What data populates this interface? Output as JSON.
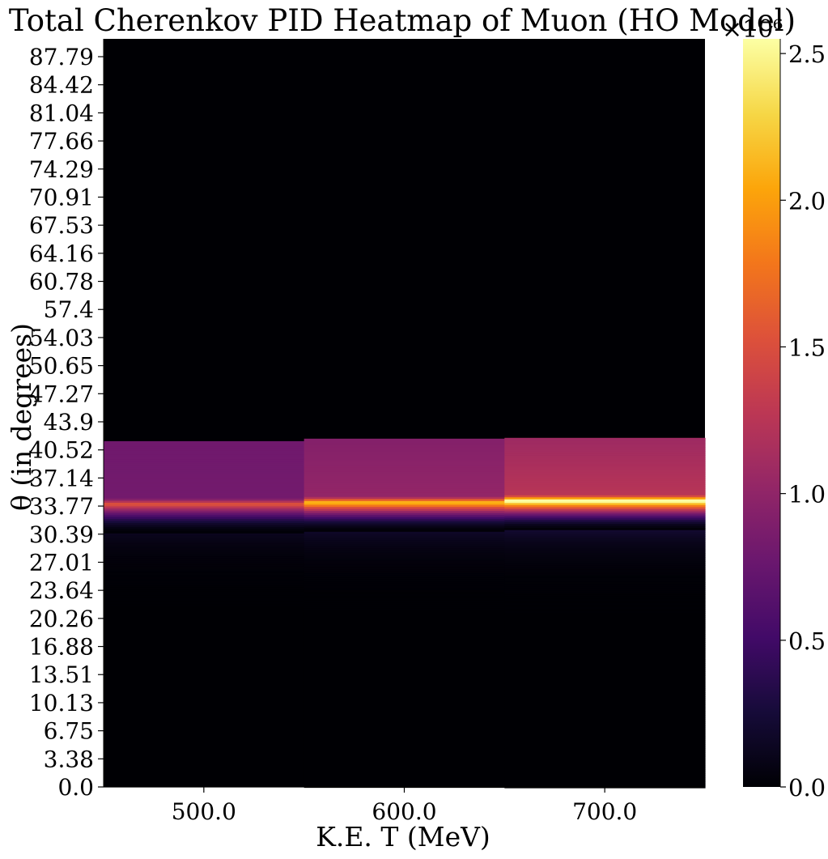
{
  "chart_data": {
    "type": "heatmap",
    "title": "Total Cherenkov PID Heatmap of Muon (HO Model)",
    "xlabel": "K.E. T (MeV)",
    "ylabel": "θ (in degrees)",
    "x_tick_labels": [
      "500.0",
      "600.0",
      "700.0"
    ],
    "x_categories": [
      500,
      600,
      700
    ],
    "y_tick_labels": [
      "0.0",
      "3.38",
      "6.75",
      "10.13",
      "13.51",
      "16.88",
      "20.26",
      "23.64",
      "27.01",
      "30.39",
      "33.77",
      "37.14",
      "40.52",
      "43.9",
      "47.27",
      "50.65",
      "54.03",
      "57.4",
      "60.78",
      "64.16",
      "67.53",
      "70.91",
      "74.29",
      "77.66",
      "81.04",
      "84.42",
      "87.79"
    ],
    "ylim": [
      0,
      90
    ],
    "colormap": "inferno",
    "colorbar": {
      "min": 0,
      "max": 2550000,
      "tick_values": [
        0,
        0.5,
        1.0,
        1.5,
        2.0,
        2.5
      ],
      "tick_labels": [
        "0.0",
        "0.5",
        "1.0",
        "1.5",
        "2.0",
        "2.5"
      ],
      "multiplier_label": "×10⁶"
    },
    "columns": [
      {
        "T": 500,
        "cutoff_deg": 41.6,
        "peak_deg": 34.0,
        "peak_value": 1500000,
        "plateau_start": 820000,
        "plateau_end": 800000
      },
      {
        "T": 600,
        "cutoff_deg": 41.9,
        "peak_deg": 34.2,
        "peak_value": 2100000,
        "plateau_start": 1020000,
        "plateau_end": 920000
      },
      {
        "T": 700,
        "cutoff_deg": 42.0,
        "peak_deg": 34.4,
        "peak_value": 2550000,
        "plateau_start": 1250000,
        "plateau_end": 1080000
      }
    ],
    "grid": false
  }
}
